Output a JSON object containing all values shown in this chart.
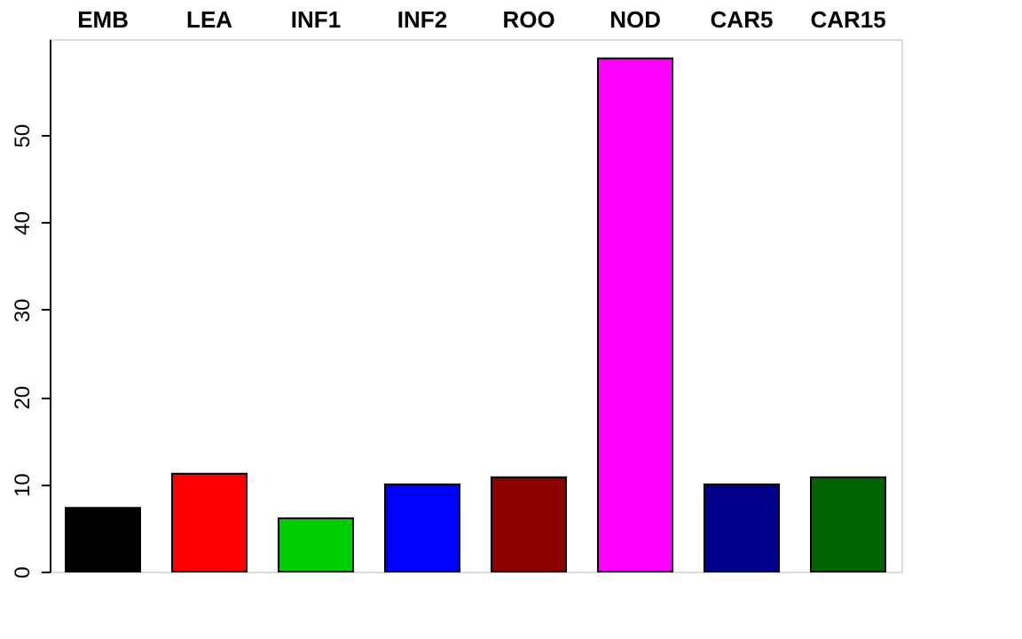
{
  "chart_data": {
    "type": "bar",
    "categories": [
      "EMB",
      "LEA",
      "INF1",
      "INF2",
      "ROO",
      "NOD",
      "CAR5",
      "CAR15"
    ],
    "values": [
      7.3,
      11.2,
      6.1,
      10.0,
      10.8,
      58.8,
      10.0,
      10.8
    ],
    "colors": [
      "#000000",
      "#ff0000",
      "#00cd00",
      "#0000ff",
      "#8b0000",
      "#ff00ff",
      "#00008b",
      "#006400"
    ],
    "ylim": [
      0,
      61
    ],
    "yticks": [
      0,
      10,
      20,
      30,
      40,
      50
    ],
    "grid": false
  }
}
